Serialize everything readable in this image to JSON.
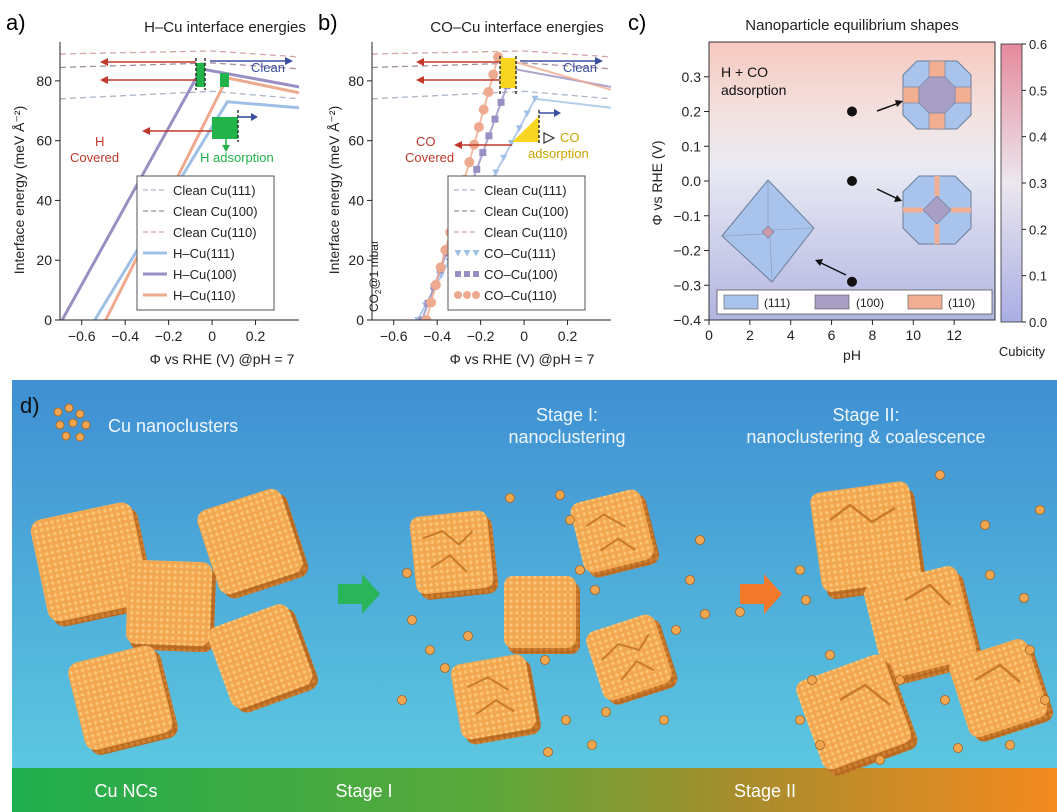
{
  "panel_labels": {
    "a": "a)",
    "b": "b)",
    "c": "c)",
    "d": "d)"
  },
  "colors": {
    "clean111": "#a9b6c7",
    "clean100": "#a58da3",
    "clean110": "#cfa8a4",
    "h111": "#9fc0e6",
    "h100": "#9a8fc2",
    "h110": "#eeaa8e",
    "green": "#22b34a",
    "yellow": "#f7d520",
    "red": "#c0392b",
    "blue": "#3b4fa0",
    "facet111": "#a9c4ec",
    "facet100": "#a99ec4",
    "facet110": "#f2ae93",
    "copper": "#f2a650",
    "sea_top": "#3f8fd2",
    "sea_bottom": "#5cc7e0"
  },
  "chart_data": [
    {
      "id": "a",
      "type": "line",
      "title": "H–Cu interface energies",
      "xlabel": "Φ vs RHE (V)  @pH = 7",
      "ylabel": "Interface energy (meV Å⁻²)",
      "xlim": [
        -0.7,
        0.4
      ],
      "ylim": [
        0,
        93
      ],
      "xticks": [
        -0.6,
        -0.4,
        -0.2,
        0.0,
        0.2
      ],
      "xtick_labels": [
        "−0.6",
        "−0.4",
        "−0.2",
        "0",
        "0.2"
      ],
      "yticks": [
        0,
        20,
        40,
        60,
        80
      ],
      "legend_position": "bottom-right",
      "series": [
        {
          "name": "Clean Cu(111)",
          "style": "dashed",
          "x": [
            -0.7,
            0.0,
            0.4
          ],
          "y": [
            74,
            76.5,
            74
          ]
        },
        {
          "name": "Clean Cu(100)",
          "style": "dashed",
          "x": [
            -0.7,
            0.0,
            0.4
          ],
          "y": [
            84.5,
            86,
            84
          ]
        },
        {
          "name": "Clean Cu(110)",
          "style": "dashed",
          "x": [
            -0.7,
            0.0,
            0.4
          ],
          "y": [
            89,
            90,
            88
          ]
        },
        {
          "name": "H–Cu(111)",
          "style": "solid",
          "x": [
            -0.54,
            0.07,
            0.4
          ],
          "y": [
            0,
            73,
            71
          ]
        },
        {
          "name": "H–Cu(100)",
          "style": "solid",
          "x": [
            -0.69,
            -0.05,
            0.4
          ],
          "y": [
            0,
            84,
            78
          ]
        },
        {
          "name": "H–Cu(110)",
          "style": "solid",
          "x": [
            -0.49,
            0.07,
            0.4
          ],
          "y": [
            0,
            81,
            76
          ]
        }
      ],
      "annotations": [
        {
          "text": "Clean",
          "x": 0.2,
          "y": 88
        },
        {
          "text": "H",
          "x": -0.43,
          "y": 64
        },
        {
          "text": "Covered",
          "x": -0.5,
          "y": 58
        },
        {
          "text": "H adsorption",
          "x": 0.08,
          "y": 58
        }
      ]
    },
    {
      "id": "b",
      "type": "line",
      "title": "CO–Cu interface energies",
      "xlabel": "Φ vs RHE (V)  @pH = 7",
      "ylabel": "Interface energy (meV Å⁻²)",
      "xlim": [
        -0.7,
        0.4
      ],
      "ylim": [
        0,
        93
      ],
      "xticks": [
        -0.6,
        -0.4,
        -0.2,
        0.0,
        0.2
      ],
      "xtick_labels": [
        "−0.6",
        "−0.4",
        "−0.2",
        "0",
        "0.2"
      ],
      "yticks": [
        0,
        20,
        40,
        60,
        80
      ],
      "legend_position": "bottom-right",
      "side_note_main": "CO",
      "side_note_sub": "2",
      "side_note_rest": "@1 mbar",
      "series": [
        {
          "name": "Clean Cu(111)",
          "style": "dashed",
          "x": [
            -0.7,
            0.0,
            0.4
          ],
          "y": [
            74,
            76.5,
            74
          ]
        },
        {
          "name": "Clean Cu(100)",
          "style": "dashed",
          "x": [
            -0.7,
            0.0,
            0.4
          ],
          "y": [
            84.5,
            86,
            84
          ]
        },
        {
          "name": "Clean Cu(110)",
          "style": "dashed",
          "x": [
            -0.7,
            0.0,
            0.4
          ],
          "y": [
            89,
            90,
            88
          ]
        },
        {
          "name": "CO–Cu(111)",
          "style": "markers-triangle",
          "x": [
            -0.49,
            0.05,
            0.4
          ],
          "y": [
            0,
            74,
            71
          ]
        },
        {
          "name": "CO–Cu(100)",
          "style": "markers-square",
          "x": [
            -0.47,
            -0.05,
            0.4
          ],
          "y": [
            0,
            84,
            78
          ]
        },
        {
          "name": "CO–Cu(110)",
          "style": "markers-circle",
          "x": [
            -0.45,
            -0.12,
            0.4
          ],
          "y": [
            0,
            88,
            77
          ]
        }
      ],
      "annotations": [
        {
          "text": "Clean",
          "x": 0.2,
          "y": 88
        },
        {
          "text": "CO",
          "x": -0.42,
          "y": 64
        },
        {
          "text": "Covered",
          "x": -0.48,
          "y": 58
        },
        {
          "text": "CO",
          "x": 0.14,
          "y": 63
        },
        {
          "text": "adsorption",
          "x": 0.0,
          "y": 58
        }
      ]
    },
    {
      "id": "c",
      "type": "heatmap",
      "title": "Nanoparticle equilibrium shapes",
      "xlabel": "pH",
      "ylabel": "Φ vs RHE (V)",
      "xlim": [
        0,
        14
      ],
      "ylim": [
        -0.4,
        0.4
      ],
      "xticks": [
        0,
        2,
        4,
        6,
        8,
        10,
        12
      ],
      "yticks": [
        -0.4,
        -0.3,
        -0.2,
        -0.1,
        0.0,
        0.1,
        0.2,
        0.3
      ],
      "ytick_labels": [
        "−0.4",
        "−0.3",
        "−0.2",
        "−0.1",
        "0.0",
        "0.1",
        "0.2",
        "0.3"
      ],
      "colorbar": {
        "label": "Cubicity",
        "range": [
          0.0,
          0.6
        ],
        "ticks": [
          "0.0",
          "0.1",
          "0.2",
          "0.3",
          "0.4",
          "0.5",
          "0.6"
        ]
      },
      "annotation_line1": "H + CO",
      "annotation_line2": "adsorption",
      "points": [
        {
          "x": 7,
          "y": 0.2
        },
        {
          "x": 7,
          "y": 0.0
        },
        {
          "x": 7,
          "y": -0.29
        }
      ],
      "legend": [
        {
          "label": "(111)"
        },
        {
          "label": "(100)"
        },
        {
          "label": "(110)"
        }
      ]
    }
  ],
  "panel_d": {
    "legend_label": "Cu nanoclusters",
    "stage1_line1": "Stage I:",
    "stage1_line2": "nanoclustering",
    "stage2_line1": "Stage II:",
    "stage2_line2": "nanoclustering & coalescence",
    "bar_labels": [
      "Cu NCs",
      "Stage I",
      "Stage II"
    ]
  }
}
